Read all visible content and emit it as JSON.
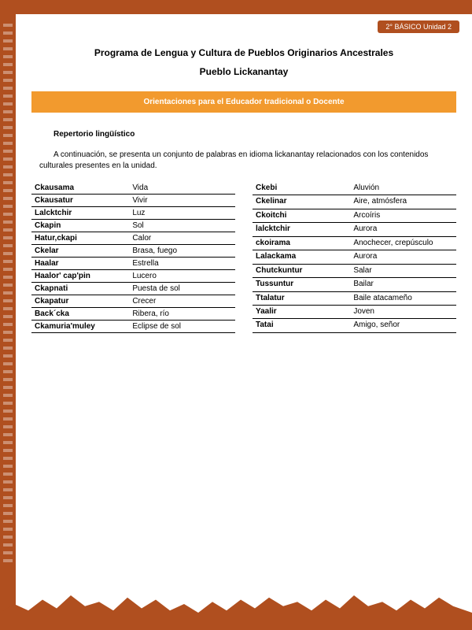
{
  "badge": "2° BÁSICO Unidad 2",
  "title": "Programa de Lengua y Cultura de Pueblos Originarios Ancestrales",
  "subtitle": "Pueblo Lickanantay",
  "banner": "Orientaciones para el Educador tradicional o Docente",
  "section_heading": "Repertorio lingüístico",
  "intro": "A continuación, se presenta un conjunto de palabras en idioma lickanantay relacionados con los contenidos culturales presentes en la unidad.",
  "colors": {
    "brand": "#b04f1f",
    "accent": "#f29a2e",
    "text": "#000000",
    "white": "#ffffff"
  },
  "typography": {
    "title_fontsize": 12,
    "title_weight": "bold",
    "banner_fontsize": 10,
    "section_fontsize": 10,
    "body_fontsize": 10,
    "table_fontsize": 10
  },
  "table_left": [
    {
      "term": "Ckausama",
      "def": "Vida"
    },
    {
      "term": "Ckausatur",
      "def": "Vivir"
    },
    {
      "term": "Lalcktchir",
      "def": "Luz"
    },
    {
      "term": "Ckapin",
      "def": "Sol"
    },
    {
      "term": "Hatur,ckapi",
      "def": "Calor"
    },
    {
      "term": "Ckelar",
      "def": "Brasa, fuego"
    },
    {
      "term": "Haalar",
      "def": "Estrella"
    },
    {
      "term": "Haalor' cap'pin",
      "def": "Lucero"
    },
    {
      "term": "Ckapnati",
      "def": "Puesta de sol"
    },
    {
      "term": "Ckapatur",
      "def": "Crecer"
    },
    {
      "term": "Back´cka",
      "def": "Ribera, río"
    },
    {
      "term": "Ckamuria'muley",
      "def": "Eclipse de sol"
    }
  ],
  "table_right": [
    {
      "term": "Ckebi",
      "def": "Aluvión"
    },
    {
      "term": "Ckelinar",
      "def": "Aire,  atmósfera"
    },
    {
      "term": "Ckoitchi",
      "def": "Arcoíris"
    },
    {
      "term": "lalcktchir",
      "def": "Aurora"
    },
    {
      "term": "ckoirama",
      "def": "Anochecer, crepúsculo"
    },
    {
      "term": "Lalackama",
      "def": "Aurora"
    },
    {
      "term": "Chutckuntur",
      "def": "Salar"
    },
    {
      "term": "Tussuntur",
      "def": "Bailar"
    },
    {
      "term": "Ttalatur",
      "def": "Baile  atacameño"
    },
    {
      "term": "Yaalir",
      "def": "Joven"
    },
    {
      "term": "Tatai",
      "def": "Amigo, señor"
    }
  ]
}
